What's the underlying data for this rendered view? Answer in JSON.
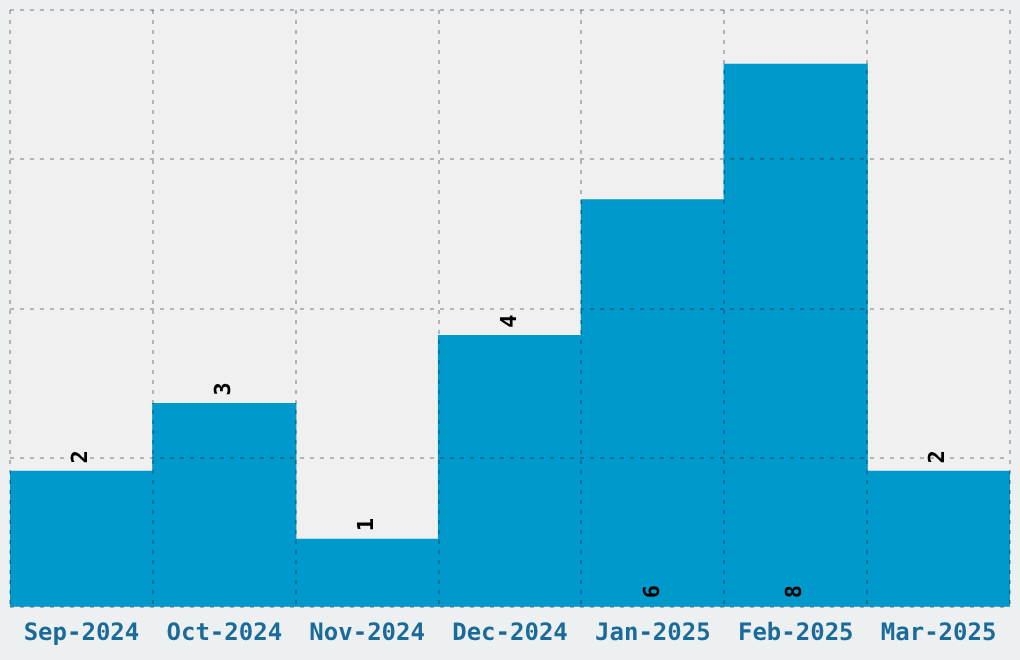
{
  "chart_data": {
    "type": "bar",
    "categories": [
      "Sep-2024",
      "Oct-2024",
      "Nov-2024",
      "Dec-2024",
      "Jan-2025",
      "Feb-2025",
      "Mar-2025"
    ],
    "values": [
      2,
      3,
      1,
      4,
      6,
      8,
      2
    ],
    "color": "#0099cc",
    "ylim": [
      0,
      8.8
    ],
    "yticks": [
      {
        "value": 0,
        "label": null
      },
      {
        "value": 2.2,
        "label": null
      },
      {
        "value": 4.4,
        "label": null
      },
      {
        "value": 6.6,
        "label": null
      },
      {
        "value": 8.8,
        "label": null
      }
    ],
    "grid": true,
    "tick_labels": "x",
    "data_labels": true
  }
}
